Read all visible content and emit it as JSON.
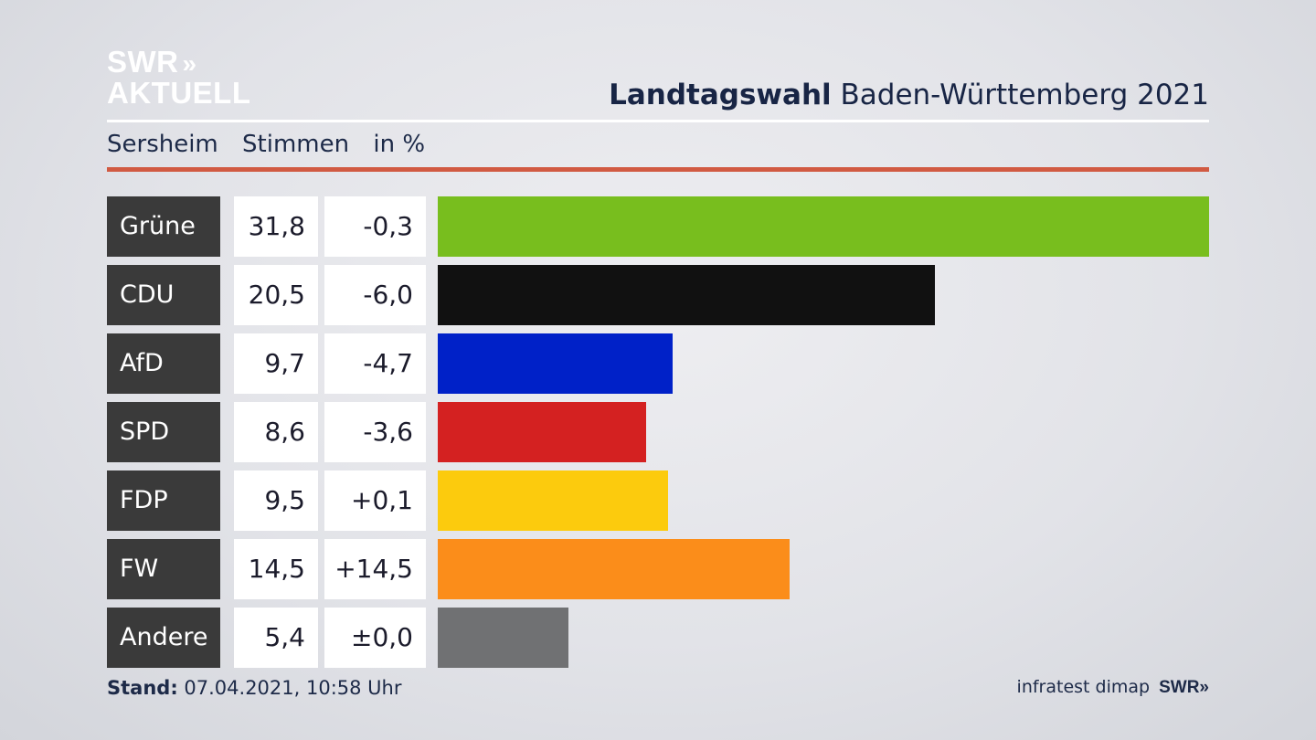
{
  "header": {
    "logo_line1": "SWR",
    "logo_arrows": "»",
    "logo_line2": "AKTUELL",
    "title_bold": "Landtagswahl",
    "title_rest": " Baden-Württemberg 2021"
  },
  "columns": {
    "location": "Sersheim",
    "votes": "Stimmen",
    "unit": "in %"
  },
  "chart_data": {
    "type": "bar",
    "title": "Landtagswahl Baden-Württemberg 2021",
    "subtitle": "Sersheim",
    "categories": [
      "Grüne",
      "CDU",
      "AfD",
      "SPD",
      "FDP",
      "FW",
      "Andere"
    ],
    "values": [
      31.8,
      20.5,
      9.7,
      8.6,
      9.5,
      14.5,
      5.4
    ],
    "values_label": [
      "31,8",
      "20,5",
      "9,7",
      "8,6",
      "9,5",
      "14,5",
      "5,4"
    ],
    "changes_label": [
      "-0,3",
      "-6,0",
      "-4,7",
      "-3,6",
      "+0,1",
      "+14,5",
      "±0,0"
    ],
    "colors": [
      "#78be1e",
      "#111111",
      "#0021c8",
      "#d42121",
      "#fccb0d",
      "#fb8d1a",
      "#707173"
    ],
    "orientation": "horizontal",
    "xlim": [
      0,
      31.8
    ],
    "ylabel": "Stimmen in %"
  },
  "footer": {
    "stand_label": "Stand:",
    "stand_value": " 07.04.2021, 10:58 Uhr",
    "source": "infratest dimap",
    "brand": "SWR",
    "brand_arrows": "»"
  }
}
